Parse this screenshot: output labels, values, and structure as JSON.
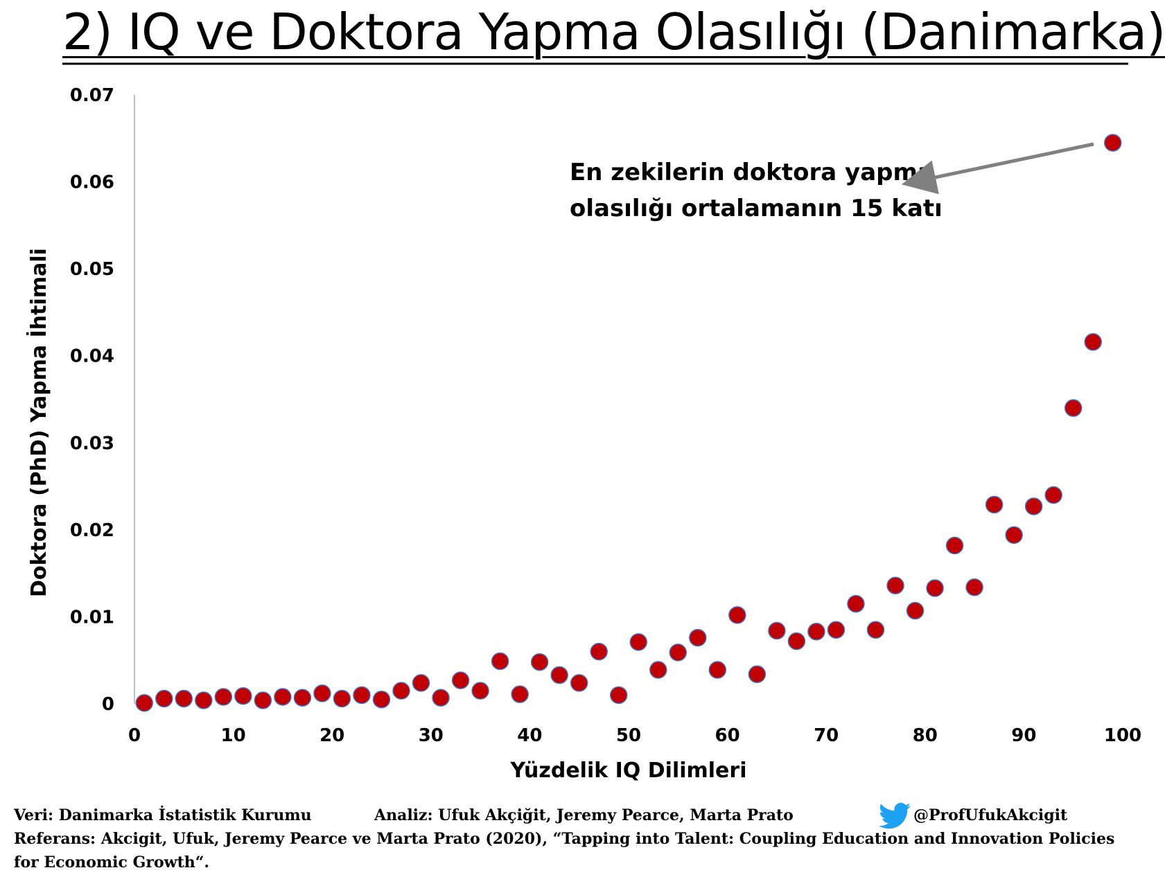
{
  "title": "2) IQ ve Doktora Yapma Olasılığı (Danimarka)",
  "colors": {
    "marker_fill": "#c00000",
    "marker_stroke": "#4472c4",
    "arrow": "#808080",
    "axis": "#bfbfbf",
    "twitter": "#1da1f2"
  },
  "icons": {
    "twitter": "twitter-bird-icon"
  },
  "footer": {
    "data_source": "Veri: Danimarka İstatistik Kurumu",
    "analysis": "Analiz: Ufuk Akçiğit, Jeremy Pearce, Marta Prato",
    "handle": "@ProfUfukAkcigit",
    "reference_line1": "Referans: Akcigit, Ufuk, Jeremy Pearce ve Marta Prato (2020),  “Tapping into Talent: Coupling Education and Innovation Policies",
    "reference_line2": "for Economic Growth“."
  },
  "chart_data": {
    "type": "scatter",
    "xlabel": "Yüzdelik IQ Dilimleri",
    "ylabel": "Doktora (PhD) Yapma İhtimali",
    "xlim": [
      0,
      100
    ],
    "ylim": [
      0,
      0.07
    ],
    "x_ticks": [
      "0",
      "10",
      "20",
      "30",
      "40",
      "50",
      "60",
      "70",
      "80",
      "90",
      "100"
    ],
    "y_ticks": [
      "0",
      "0.01",
      "0.02",
      "0.03",
      "0.04",
      "0.05",
      "0.06",
      "0.07"
    ],
    "annotation": {
      "line1": "En zekilerin doktora yapma",
      "line2": "olasılığı ortalamanın 15 katı"
    },
    "points": [
      [
        1,
        0.0001
      ],
      [
        3,
        0.0006
      ],
      [
        5,
        0.0006
      ],
      [
        7,
        0.0004
      ],
      [
        9,
        0.0008
      ],
      [
        11,
        0.0009
      ],
      [
        13,
        0.0004
      ],
      [
        15,
        0.0008
      ],
      [
        17,
        0.0007
      ],
      [
        19,
        0.0012
      ],
      [
        21,
        0.0006
      ],
      [
        23,
        0.001
      ],
      [
        25,
        0.0005
      ],
      [
        27,
        0.0015
      ],
      [
        29,
        0.0024
      ],
      [
        31,
        0.0007
      ],
      [
        33,
        0.0027
      ],
      [
        35,
        0.0015
      ],
      [
        37,
        0.0049
      ],
      [
        39,
        0.0011
      ],
      [
        41,
        0.0048
      ],
      [
        43,
        0.0033
      ],
      [
        45,
        0.0024
      ],
      [
        47,
        0.006
      ],
      [
        49,
        0.001
      ],
      [
        51,
        0.0071
      ],
      [
        53,
        0.0039
      ],
      [
        55,
        0.0059
      ],
      [
        57,
        0.0076
      ],
      [
        59,
        0.0039
      ],
      [
        61,
        0.0102
      ],
      [
        63,
        0.0034
      ],
      [
        65,
        0.0084
      ],
      [
        67,
        0.0072
      ],
      [
        69,
        0.0083
      ],
      [
        71,
        0.0085
      ],
      [
        73,
        0.0115
      ],
      [
        75,
        0.0085
      ],
      [
        77,
        0.0136
      ],
      [
        79,
        0.0107
      ],
      [
        81,
        0.0133
      ],
      [
        83,
        0.0182
      ],
      [
        85,
        0.0134
      ],
      [
        87,
        0.0229
      ],
      [
        89,
        0.0194
      ],
      [
        91,
        0.0227
      ],
      [
        93,
        0.024
      ],
      [
        95,
        0.034
      ],
      [
        97,
        0.0416
      ],
      [
        99,
        0.0645
      ]
    ]
  }
}
